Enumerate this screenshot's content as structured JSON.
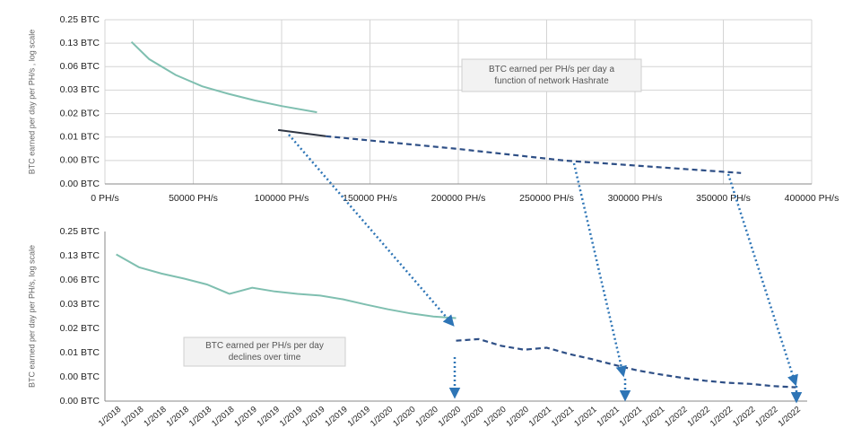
{
  "chart_data": [
    {
      "type": "line",
      "y_label": "BTC earned per day per PH/s , log scale",
      "annotation": [
        "BTC earned per PH/s per day a",
        "function of network Hashrate"
      ],
      "log_y": true,
      "log_base": 2,
      "grid": true,
      "xlim": [
        0,
        400000
      ],
      "xticks": [
        {
          "value": 0,
          "label": "0 PH/s"
        },
        {
          "value": 50000,
          "label": "50000 PH/s"
        },
        {
          "value": 100000,
          "label": "100000 PH/s"
        },
        {
          "value": 150000,
          "label": "150000 PH/s"
        },
        {
          "value": 200000,
          "label": "200000 PH/s"
        },
        {
          "value": 250000,
          "label": "250000 PH/s"
        },
        {
          "value": 300000,
          "label": "300000 PH/s"
        },
        {
          "value": 350000,
          "label": "350000 PH/s"
        },
        {
          "value": 400000,
          "label": "400000 PH/s"
        }
      ],
      "ylim": [
        0.001953125,
        0.25
      ],
      "yticks": [
        {
          "value": 0.25,
          "label": "0.25 BTC"
        },
        {
          "value": 0.125,
          "label": "0.13 BTC"
        },
        {
          "value": 0.0625,
          "label": "0.06 BTC"
        },
        {
          "value": 0.03125,
          "label": "0.03 BTC"
        },
        {
          "value": 0.015625,
          "label": "0.02 BTC"
        },
        {
          "value": 0.0078125,
          "label": "0.01 BTC"
        },
        {
          "value": 0.00390625,
          "label": "0.00 BTC"
        },
        {
          "value": 0.001953125,
          "label": "0.00 BTC"
        }
      ],
      "series": [
        {
          "color": "#7fbfb0",
          "dashed": false,
          "x": [
            15000,
            25000,
            40000,
            55000,
            70000,
            85000,
            100000,
            120000
          ],
          "values": [
            0.13,
            0.078,
            0.049,
            0.035,
            0.028,
            0.023,
            0.0195,
            0.01625
          ]
        },
        {
          "color": "#2f3542",
          "dashed": false,
          "x": [
            98000,
            125000
          ],
          "values": [
            0.0096,
            0.008
          ]
        },
        {
          "color": "#2e4f86",
          "dashed": true,
          "x": [
            125000,
            200000,
            260000,
            360000
          ],
          "values": [
            0.008,
            0.0055,
            0.0039,
            0.0027
          ]
        }
      ]
    },
    {
      "type": "line",
      "y_label": "BTC earned per day per PH/s, log scale",
      "annotation": [
        "BTC earned per PH/s per day",
        "declines over time"
      ],
      "log_y": true,
      "log_base": 2,
      "grid": false,
      "categories": [
        "1/2018",
        "1/2018",
        "1/2018",
        "1/2018",
        "1/2018",
        "1/2018",
        "1/2019",
        "1/2019",
        "1/2019",
        "1/2019",
        "1/2019",
        "1/2019",
        "1/2020",
        "1/2020",
        "1/2020",
        "1/2020",
        "1/2020",
        "1/2020",
        "1/2020",
        "1/2021",
        "1/2021",
        "1/2021",
        "1/2021",
        "1/2021",
        "1/2021",
        "1/2022",
        "1/2022",
        "1/2022",
        "1/2022",
        "1/2022",
        "1/2022"
      ],
      "ylim": [
        0.001953125,
        0.25
      ],
      "yticks": [
        {
          "value": 0.25,
          "label": "0.25 BTC"
        },
        {
          "value": 0.125,
          "label": "0.13 BTC"
        },
        {
          "value": 0.0625,
          "label": "0.06 BTC"
        },
        {
          "value": 0.03125,
          "label": "0.03 BTC"
        },
        {
          "value": 0.015625,
          "label": "0.02 BTC"
        },
        {
          "value": 0.0078125,
          "label": "0.01 BTC"
        },
        {
          "value": 0.00390625,
          "label": "0.00 BTC"
        },
        {
          "value": 0.001953125,
          "label": "0.00 BTC"
        }
      ],
      "series": [
        {
          "color": "#7fbfb0",
          "dashed": false,
          "values": [
            0.13,
            0.09,
            0.075,
            0.065,
            0.055,
            0.042,
            0.05,
            0.045,
            0.042,
            0.04,
            0.036,
            0.031,
            0.027,
            0.024,
            0.022,
            0.021,
            null,
            null,
            null,
            null,
            null,
            null,
            null,
            null,
            null,
            null,
            null,
            null,
            null,
            null,
            null
          ]
        },
        {
          "color": "#2e4f86",
          "dashed": true,
          "values": [
            null,
            null,
            null,
            null,
            null,
            null,
            null,
            null,
            null,
            null,
            null,
            null,
            null,
            null,
            null,
            0.011,
            0.0115,
            0.0095,
            0.0085,
            0.009,
            0.0075,
            0.0065,
            0.0055,
            0.0047,
            0.0042,
            0.0038,
            0.0035,
            0.0033,
            0.0032,
            0.003,
            0.0029
          ]
        }
      ]
    }
  ]
}
